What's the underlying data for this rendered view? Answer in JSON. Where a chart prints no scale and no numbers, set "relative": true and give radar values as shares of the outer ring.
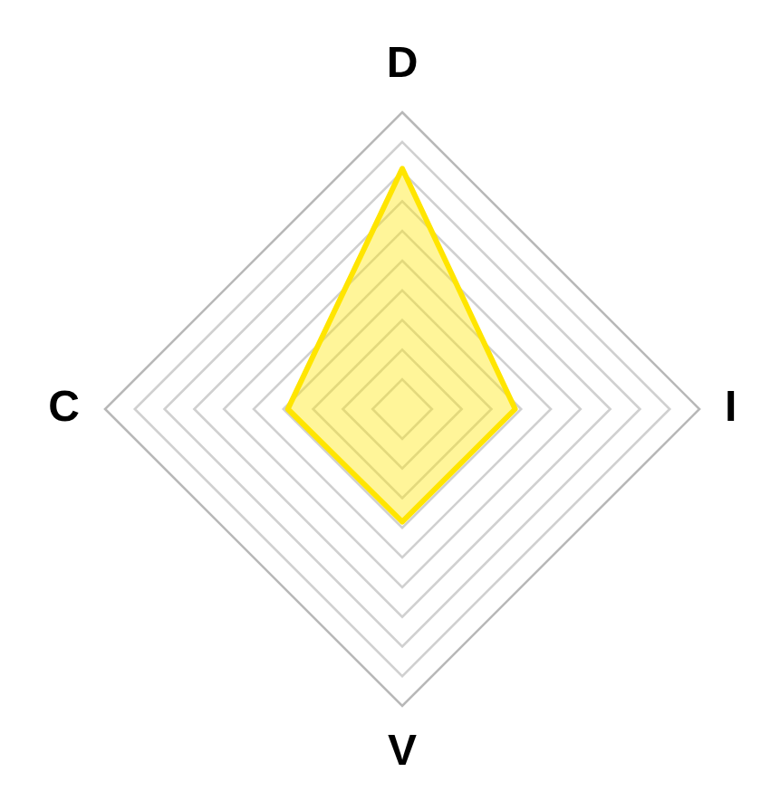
{
  "chart_data": {
    "type": "radar",
    "relative": true,
    "grid": true,
    "categories": [
      "D",
      "I",
      "V",
      "C"
    ],
    "series": [
      {
        "color": "#ffe500",
        "values": [
          0.81,
          0.38,
          0.38,
          0.385
        ]
      }
    ]
  }
}
